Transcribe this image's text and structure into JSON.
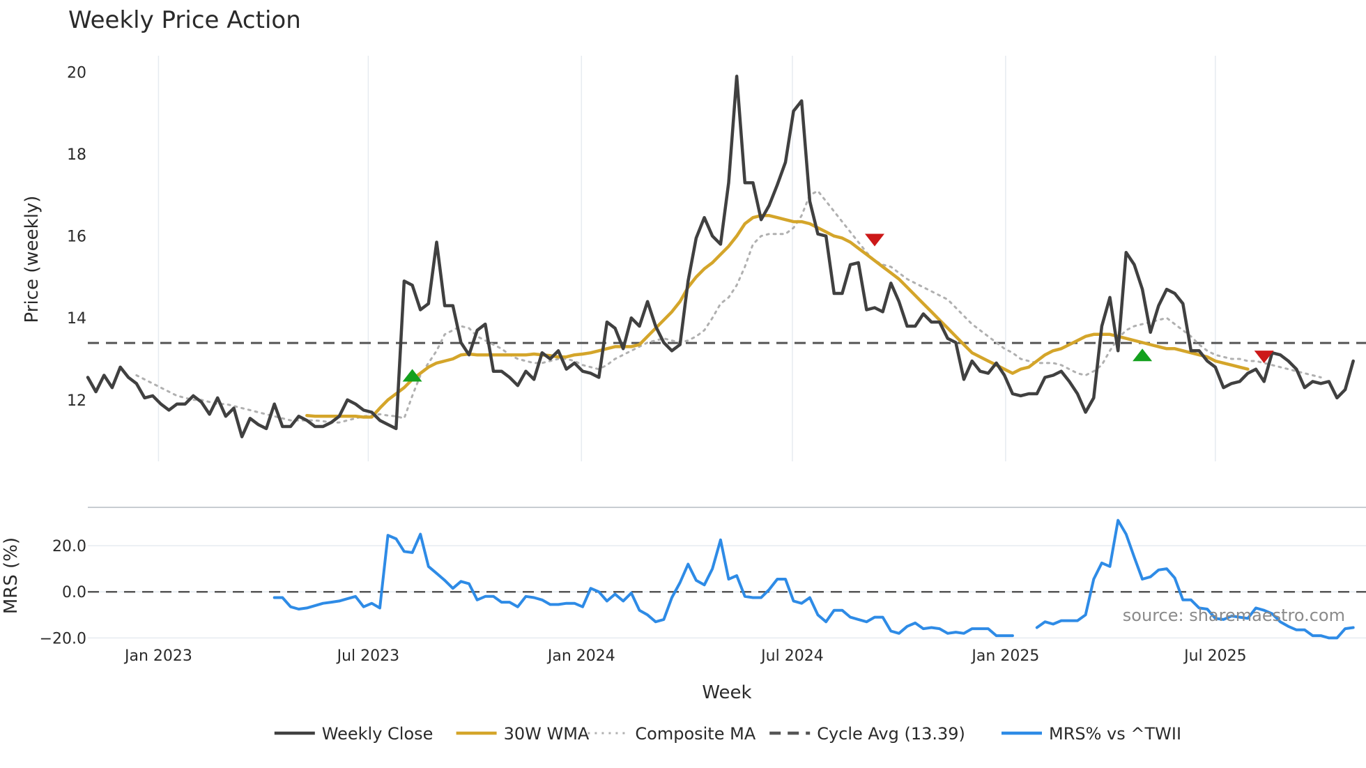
{
  "chart_data": {
    "type": "line",
    "title": "Weekly Price Action",
    "xlabel": "Week",
    "source": "source: sharemaestro.com",
    "x_ticks": [
      "Jan 2023",
      "Jul 2023",
      "Jan 2024",
      "Jul 2024",
      "Jan 2025",
      "Jul 2025"
    ],
    "x_range": [
      "2022-11-01",
      "2025-11-08"
    ],
    "price_panel": {
      "ylabel": "Price (weekly)",
      "ylim": [
        10.5,
        20.4
      ],
      "y_ticks": [
        12,
        14,
        16,
        18,
        20
      ],
      "series": [
        {
          "name": "Weekly Close",
          "color": "#404040",
          "style": "solid",
          "start": "2022-11-01",
          "values": [
            12.55,
            12.2,
            12.6,
            12.3,
            12.8,
            12.55,
            12.4,
            12.05,
            12.1,
            11.9,
            11.75,
            11.9,
            11.9,
            12.1,
            11.95,
            11.65,
            12.05,
            11.6,
            11.8,
            11.1,
            11.55,
            11.4,
            11.3,
            11.9,
            11.35,
            11.35,
            11.6,
            11.5,
            11.35,
            11.35,
            11.45,
            11.6,
            12.0,
            11.9,
            11.75,
            11.7,
            11.5,
            11.4,
            11.3,
            14.9,
            14.8,
            14.2,
            14.35,
            15.85,
            14.3,
            14.3,
            13.4,
            13.1,
            13.7,
            13.85,
            12.7,
            12.7,
            12.55,
            12.35,
            12.7,
            12.5,
            13.15,
            13.0,
            13.2,
            12.75,
            12.9,
            12.7,
            12.65,
            12.55,
            13.9,
            13.75,
            13.25,
            14.0,
            13.8,
            14.4,
            13.8,
            13.4,
            13.2,
            13.35,
            14.9,
            15.95,
            16.45,
            16.0,
            15.8,
            17.3,
            19.9,
            17.3,
            17.3,
            16.4,
            16.75,
            17.25,
            17.8,
            19.05,
            19.3,
            16.85,
            16.05,
            16.0,
            14.6,
            14.6,
            15.3,
            15.35,
            14.2,
            14.25,
            14.15,
            14.85,
            14.4,
            13.8,
            13.8,
            14.1,
            13.9,
            13.9,
            13.5,
            13.4,
            12.5,
            12.95,
            12.7,
            12.65,
            12.9,
            12.6,
            12.15,
            12.1,
            12.15,
            12.15,
            12.55,
            12.6,
            12.7,
            12.45,
            12.15,
            11.7,
            12.05,
            13.8,
            14.5,
            13.2,
            15.6,
            15.3,
            14.7,
            13.65,
            14.3,
            14.7,
            14.6,
            14.35,
            13.2,
            13.2,
            12.95,
            12.8,
            12.3,
            12.4,
            12.45,
            12.65,
            12.75,
            12.45,
            13.15,
            13.1,
            12.95,
            12.75,
            12.3,
            12.45,
            12.4,
            12.45,
            12.05,
            12.25,
            12.95
          ]
        },
        {
          "name": "30W WMA",
          "color": "#d4a52a",
          "style": "solid",
          "start": "2023-05-09",
          "values": [
            11.62,
            11.6,
            11.6,
            11.6,
            11.6,
            11.6,
            11.6,
            11.58,
            11.58,
            11.8,
            12.0,
            12.15,
            12.3,
            12.5,
            12.65,
            12.8,
            12.9,
            12.95,
            13.0,
            13.1,
            13.12,
            13.1,
            13.1,
            13.1,
            13.1,
            13.1,
            13.1,
            13.1,
            13.12,
            13.1,
            13.08,
            13.05,
            13.05,
            13.1,
            13.12,
            13.15,
            13.2,
            13.25,
            13.3,
            13.3,
            13.3,
            13.35,
            13.55,
            13.75,
            13.95,
            14.15,
            14.4,
            14.75,
            15.0,
            15.2,
            15.35,
            15.55,
            15.75,
            16.0,
            16.3,
            16.45,
            16.5,
            16.5,
            16.45,
            16.4,
            16.35,
            16.35,
            16.3,
            16.2,
            16.1,
            16.0,
            15.95,
            15.85,
            15.7,
            15.55,
            15.4,
            15.25,
            15.1,
            14.95,
            14.75,
            14.55,
            14.35,
            14.15,
            13.95,
            13.75,
            13.55,
            13.35,
            13.15,
            13.05,
            12.95,
            12.85,
            12.75,
            12.65,
            12.75,
            12.8,
            12.95,
            13.1,
            13.2,
            13.25,
            13.35,
            13.45,
            13.55,
            13.6,
            13.6,
            13.6,
            13.55,
            13.5,
            13.45,
            13.4,
            13.35,
            13.3,
            13.25,
            13.25,
            13.2,
            13.15,
            13.1,
            13.05,
            12.95,
            12.9,
            12.85,
            12.8,
            12.75
          ]
        },
        {
          "name": "Composite MA",
          "color": "#b0b0b0",
          "style": "dotted",
          "start": "2022-12-13",
          "values": [
            12.6,
            12.5,
            12.4,
            12.3,
            12.2,
            12.1,
            12.05,
            12.0,
            12.0,
            11.95,
            11.9,
            11.9,
            11.85,
            11.8,
            11.75,
            11.7,
            11.65,
            11.6,
            11.55,
            11.5,
            11.5,
            11.5,
            11.5,
            11.48,
            11.45,
            11.45,
            11.5,
            11.55,
            11.6,
            11.62,
            11.65,
            11.62,
            11.6,
            11.55,
            12.1,
            12.6,
            12.9,
            13.2,
            13.6,
            13.7,
            13.8,
            13.75,
            13.55,
            13.45,
            13.35,
            13.25,
            13.1,
            13.0,
            12.95,
            12.9,
            12.9,
            12.95,
            13.0,
            13.0,
            12.95,
            12.85,
            12.8,
            12.75,
            12.85,
            13.0,
            13.1,
            13.2,
            13.3,
            13.4,
            13.45,
            13.5,
            13.45,
            13.4,
            13.45,
            13.55,
            13.7,
            14.0,
            14.35,
            14.5,
            14.8,
            15.25,
            15.8,
            16.0,
            16.05,
            16.05,
            16.05,
            16.2,
            16.5,
            17.0,
            17.1,
            16.85,
            16.6,
            16.35,
            16.1,
            15.85,
            15.6,
            15.4,
            15.3,
            15.25,
            15.1,
            14.95,
            14.85,
            14.75,
            14.65,
            14.55,
            14.45,
            14.25,
            14.05,
            13.85,
            13.7,
            13.55,
            13.4,
            13.25,
            13.15,
            13.0,
            12.95,
            12.9,
            12.9,
            12.9,
            12.85,
            12.75,
            12.65,
            12.6,
            12.7,
            12.85,
            13.2,
            13.5,
            13.7,
            13.8,
            13.85,
            13.9,
            13.95,
            14.0,
            13.85,
            13.7,
            13.55,
            13.35,
            13.2,
            13.1,
            13.05,
            13.0,
            13.0,
            12.95,
            12.95,
            12.9,
            12.85,
            12.8,
            12.75,
            12.7,
            12.65,
            12.6,
            12.55
          ]
        },
        {
          "name": "Cycle Avg (13.39)",
          "color": "#555555",
          "style": "dashed",
          "value": 13.39
        }
      ],
      "signals": [
        {
          "type": "buy",
          "date": "2023-08-08",
          "value": 12.6,
          "color": "#14a01e"
        },
        {
          "type": "sell",
          "date": "2024-09-10",
          "value": 15.9,
          "color": "#cc1818"
        },
        {
          "type": "buy",
          "date": "2025-04-29",
          "value": 13.1,
          "color": "#14a01e"
        },
        {
          "type": "sell",
          "date": "2025-08-12",
          "value": 13.05,
          "color": "#cc1818"
        }
      ]
    },
    "mrs_panel": {
      "ylabel": "MRS (%)",
      "ylim": [
        -22,
        33
      ],
      "y_ticks": [
        "20.0",
        "0.0",
        "−20.0"
      ],
      "y_tick_values": [
        20,
        0,
        -20
      ],
      "zero_line": {
        "value": 0,
        "style": "dashed",
        "color": "#555555"
      },
      "series": [
        {
          "name": "MRS% vs ^TWII",
          "color": "#2e8be6",
          "style": "solid",
          "start": "2023-04-11",
          "values": [
            -2.5,
            -2.5,
            -6.5,
            -7.5,
            -7,
            -6,
            -5,
            -4.5,
            -4,
            -3,
            -2,
            -6.5,
            -5,
            -7,
            24.5,
            23,
            17.5,
            17,
            25,
            11,
            8,
            5,
            1.5,
            4.5,
            3.5,
            -3.5,
            -2,
            -2,
            -4.5,
            -4.5,
            -6.5,
            -2,
            -2.5,
            -3.5,
            -5.5,
            -5.5,
            -5,
            -5,
            -6.5,
            1.5,
            0,
            -4,
            -1,
            -4,
            -0.5,
            -8,
            -10,
            -13,
            -12,
            -2.5,
            4,
            12,
            5,
            3,
            10,
            22.5,
            5.5,
            7,
            -2,
            -2.5,
            -2.5,
            1,
            5.5,
            5.5,
            -4,
            -5,
            -2.5,
            -10,
            -13,
            -8,
            -8,
            -11,
            -12,
            -13,
            -11,
            -11,
            -17,
            -18,
            -15,
            -13.5,
            -16,
            -15.5,
            -16,
            -18,
            -17.5,
            -18,
            -16,
            -16,
            -16,
            -19,
            -19,
            -19,
            null,
            null,
            -15.5,
            -13,
            -14,
            -12.5,
            -12.5,
            -12.5,
            -10,
            5.5,
            12.5,
            11,
            31,
            25,
            15,
            5.5,
            6.5,
            9.5,
            10,
            6,
            -3.5,
            -3.5,
            -7,
            -7.5,
            -11.5,
            -12,
            -10.5,
            -11,
            -11.5,
            -7,
            -8,
            -9.5,
            -13,
            -15,
            -16.5,
            -16.5,
            -19,
            -19,
            -20,
            -20,
            -16,
            -15.5
          ]
        }
      ]
    },
    "legend": {
      "position": "bottom-center",
      "items": [
        {
          "label": "Weekly Close",
          "color": "#404040",
          "style": "solid"
        },
        {
          "label": "30W WMA",
          "color": "#d4a52a",
          "style": "solid"
        },
        {
          "label": "Composite MA",
          "color": "#b0b0b0",
          "style": "dotted"
        },
        {
          "label": "Cycle Avg (13.39)",
          "color": "#555555",
          "style": "dashed"
        },
        {
          "label": "MRS% vs ^TWII",
          "color": "#2e8be6",
          "style": "solid"
        }
      ]
    }
  }
}
